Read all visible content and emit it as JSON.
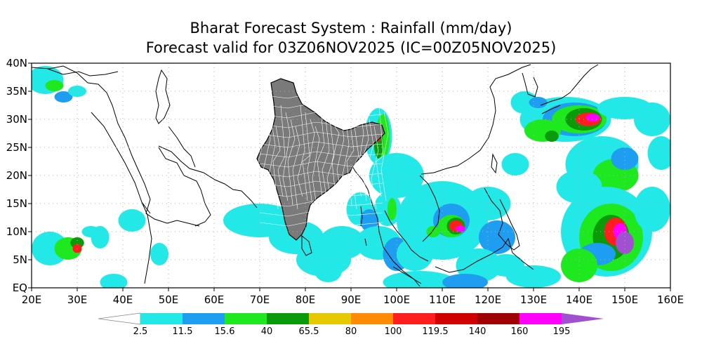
{
  "title": {
    "line1": "Bharat Forecast System : Rainfall (mm/day)",
    "line2": "Forecast valid for 03Z06NOV2025 (IC=00Z05NOV2025)"
  },
  "map": {
    "lon_range": [
      20,
      160
    ],
    "lat_range": [
      0,
      40
    ],
    "x_ticks": [
      "20E",
      "30E",
      "40E",
      "50E",
      "60E",
      "70E",
      "80E",
      "90E",
      "100E",
      "110E",
      "120E",
      "130E",
      "140E",
      "150E",
      "160E"
    ],
    "y_ticks": [
      "EQ",
      "5N",
      "10N",
      "15N",
      "20N",
      "25N",
      "30N",
      "35N",
      "40N"
    ]
  },
  "colorbar": {
    "labels": [
      "2.5",
      "11.5",
      "15.6",
      "40",
      "65.5",
      "80",
      "100",
      "119.5",
      "140",
      "160",
      "195"
    ],
    "colors": [
      "#ffffff",
      "#22e8e8",
      "#1e9ef0",
      "#1ee81e",
      "#0a9a0a",
      "#e8c800",
      "#ff8c00",
      "#ff1e1e",
      "#d00000",
      "#a00000",
      "#ff00ff",
      "#a050d0"
    ]
  },
  "colors": {
    "light": "#22e8e8",
    "mid": "#1e9ef0",
    "green": "#1ee81e",
    "dkgreen": "#0a9a0a",
    "yellow": "#e8c800",
    "orange": "#ff8c00",
    "red": "#ff1e1e",
    "dkred": "#a00000",
    "magenta": "#ff00ff",
    "purple": "#a050d0",
    "india_fill": "#7a7a7a"
  }
}
